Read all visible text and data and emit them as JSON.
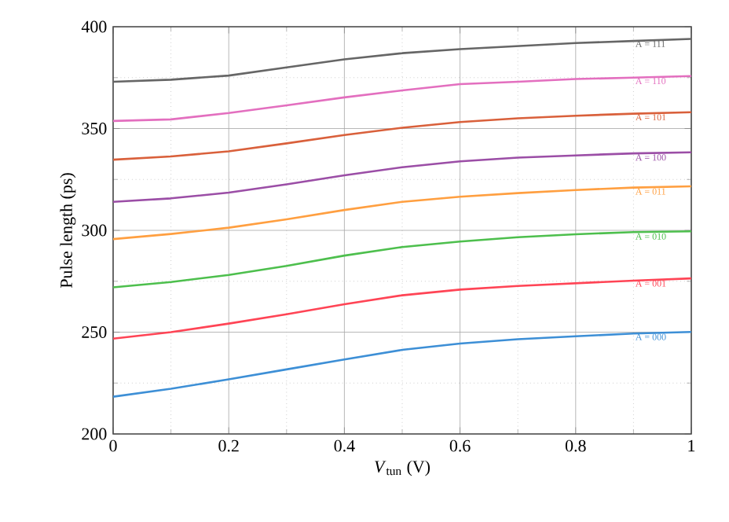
{
  "chart_data": {
    "type": "line",
    "xlabel": "*V*$_{tun}$ (V)",
    "ylabel": "Pulse length (ps)",
    "x": [
      0,
      0.1,
      0.2,
      0.3,
      0.4,
      0.5,
      0.6,
      0.7,
      0.8,
      0.9,
      1
    ],
    "xlim": [
      0,
      1
    ],
    "ylim": [
      200,
      400
    ],
    "xticks": [
      0,
      0.2,
      0.4,
      0.6,
      0.8,
      1
    ],
    "yticks": [
      200,
      250,
      300,
      350,
      400
    ],
    "grid": true,
    "legend": false,
    "marker": "none",
    "line_style": "solid",
    "series": [
      {
        "name": "A = 111",
        "color": "#666666",
        "values": [
          373,
          374,
          376,
          380,
          384,
          387,
          389,
          390.5,
          392,
          393,
          394
        ]
      },
      {
        "name": "A = 110",
        "color": "#e36fbf",
        "values": [
          353.7,
          354.5,
          357.6,
          361.4,
          365.3,
          368.7,
          371.8,
          373,
          374.3,
          375,
          375.8
        ]
      },
      {
        "name": "A = 101",
        "color": "#d9603b",
        "values": [
          334.7,
          336.3,
          338.8,
          342.7,
          346.8,
          350.4,
          353.2,
          355,
          356.3,
          357.3,
          358
        ]
      },
      {
        "name": "A = 100",
        "color": "#9b4ea6",
        "values": [
          314,
          315.7,
          318.5,
          322.6,
          327,
          331,
          333.9,
          335.7,
          336.8,
          337.8,
          338.3
        ]
      },
      {
        "name": "A = 011",
        "color": "#ff9f40",
        "values": [
          295.7,
          298.2,
          301.3,
          305.4,
          310,
          314,
          316.5,
          318.3,
          319.8,
          321,
          321.6
        ]
      },
      {
        "name": "A = 010",
        "color": "#4dbf4d",
        "values": [
          272,
          274.6,
          278.1,
          282.5,
          287.6,
          291.8,
          294.5,
          296.6,
          298.1,
          299.1,
          299.5
        ]
      },
      {
        "name": "A = 001",
        "color": "#ff4455",
        "values": [
          246.8,
          250,
          254.2,
          258.8,
          263.7,
          268.1,
          270.9,
          272.7,
          274,
          275.3,
          276.4
        ]
      },
      {
        "name": "A = 000",
        "color": "#3d8fd6",
        "values": [
          218.3,
          222.2,
          226.8,
          231.7,
          236.6,
          241.3,
          244.4,
          246.5,
          248,
          249.3,
          250.1
        ]
      }
    ]
  }
}
